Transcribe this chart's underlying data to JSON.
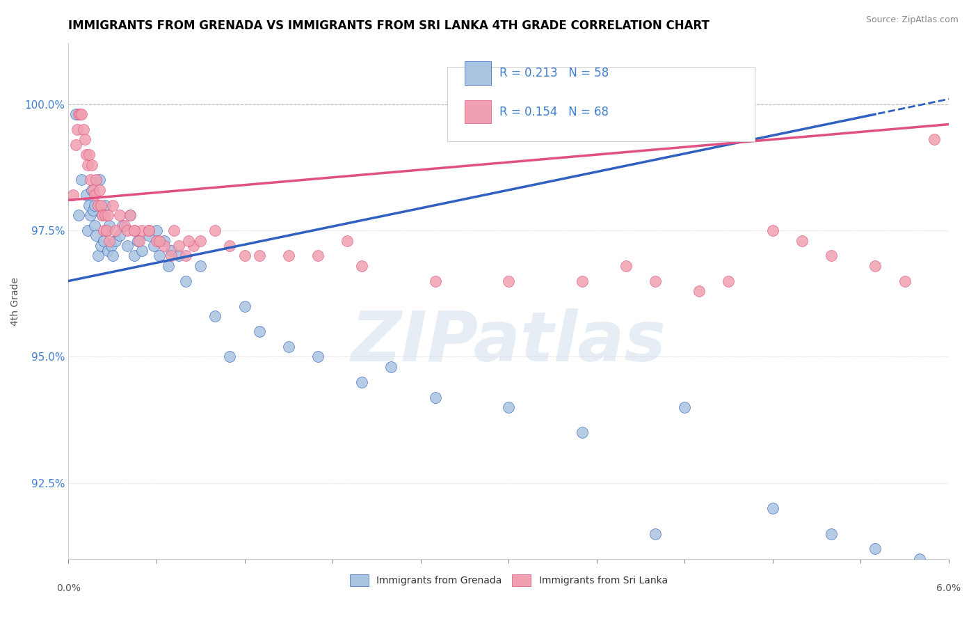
{
  "title": "IMMIGRANTS FROM GRENADA VS IMMIGRANTS FROM SRI LANKA 4TH GRADE CORRELATION CHART",
  "source_text": "Source: ZipAtlas.com",
  "ylabel": "4th Grade",
  "xmin": 0.0,
  "xmax": 6.0,
  "ymin": 91.0,
  "ymax": 101.2,
  "yticks": [
    92.5,
    95.0,
    97.5,
    100.0
  ],
  "ytick_labels": [
    "92.5%",
    "95.0%",
    "97.5%",
    "100.0%"
  ],
  "legend_blue_r": "R = 0.213",
  "legend_blue_n": "N = 58",
  "legend_pink_r": "R = 0.154",
  "legend_pink_n": "N = 68",
  "legend_label_blue": "Immigrants from Grenada",
  "legend_label_pink": "Immigrants from Sri Lanka",
  "watermark": "ZIPatlas",
  "blue_color": "#a8c4e0",
  "pink_color": "#f0a0b0",
  "blue_line_color": "#3060c0",
  "pink_line_color": "#e05080",
  "legend_text_color": "#4080d0",
  "blue_scatter_x": [
    0.05,
    0.07,
    0.09,
    0.12,
    0.13,
    0.14,
    0.15,
    0.16,
    0.17,
    0.18,
    0.18,
    0.19,
    0.2,
    0.21,
    0.22,
    0.23,
    0.24,
    0.25,
    0.26,
    0.27,
    0.28,
    0.29,
    0.3,
    0.32,
    0.35,
    0.37,
    0.4,
    0.42,
    0.45,
    0.47,
    0.5,
    0.55,
    0.58,
    0.6,
    0.62,
    0.65,
    0.68,
    0.7,
    0.75,
    0.8,
    0.9,
    1.0,
    1.1,
    1.2,
    1.3,
    1.5,
    1.7,
    2.0,
    2.2,
    2.5,
    3.0,
    3.5,
    4.0,
    4.2,
    4.8,
    5.2,
    5.5,
    5.8
  ],
  "blue_scatter_y": [
    99.8,
    97.8,
    98.5,
    98.2,
    97.5,
    98.0,
    97.8,
    98.3,
    97.9,
    97.6,
    98.0,
    97.4,
    97.0,
    98.5,
    97.2,
    97.8,
    97.3,
    98.0,
    97.5,
    97.1,
    97.6,
    97.2,
    97.0,
    97.3,
    97.4,
    97.6,
    97.2,
    97.8,
    97.0,
    97.3,
    97.1,
    97.4,
    97.2,
    97.5,
    97.0,
    97.3,
    96.8,
    97.1,
    97.0,
    96.5,
    96.8,
    95.8,
    95.0,
    96.0,
    95.5,
    95.2,
    95.0,
    94.5,
    94.8,
    94.2,
    94.0,
    93.5,
    91.5,
    94.0,
    92.0,
    91.5,
    91.2,
    91.0
  ],
  "pink_scatter_x": [
    0.03,
    0.05,
    0.06,
    0.07,
    0.08,
    0.09,
    0.1,
    0.11,
    0.12,
    0.13,
    0.14,
    0.15,
    0.16,
    0.17,
    0.18,
    0.19,
    0.2,
    0.21,
    0.22,
    0.23,
    0.24,
    0.25,
    0.26,
    0.27,
    0.28,
    0.3,
    0.32,
    0.35,
    0.38,
    0.4,
    0.42,
    0.45,
    0.48,
    0.5,
    0.55,
    0.6,
    0.65,
    0.7,
    0.75,
    0.8,
    0.85,
    0.9,
    1.0,
    1.1,
    1.2,
    1.3,
    1.5,
    1.7,
    2.0,
    2.5,
    3.0,
    3.5,
    4.0,
    4.5,
    4.8,
    5.0,
    5.2,
    5.5,
    5.7,
    5.9,
    4.3,
    3.8,
    1.9,
    0.45,
    0.55,
    0.62,
    0.72,
    0.82
  ],
  "pink_scatter_y": [
    98.2,
    99.2,
    99.5,
    99.8,
    99.8,
    99.8,
    99.5,
    99.3,
    99.0,
    98.8,
    99.0,
    98.5,
    98.8,
    98.3,
    98.2,
    98.5,
    98.0,
    98.3,
    98.0,
    97.8,
    97.5,
    97.8,
    97.5,
    97.8,
    97.3,
    98.0,
    97.5,
    97.8,
    97.6,
    97.5,
    97.8,
    97.5,
    97.3,
    97.5,
    97.5,
    97.3,
    97.2,
    97.0,
    97.2,
    97.0,
    97.2,
    97.3,
    97.5,
    97.2,
    97.0,
    97.0,
    97.0,
    97.0,
    96.8,
    96.5,
    96.5,
    96.5,
    96.5,
    96.5,
    97.5,
    97.3,
    97.0,
    96.8,
    96.5,
    99.3,
    96.3,
    96.8,
    97.3,
    97.5,
    97.5,
    97.3,
    97.5,
    97.3
  ],
  "blue_line_x0": 0.0,
  "blue_line_y0": 96.5,
  "blue_line_x1": 6.0,
  "blue_line_y1": 100.1,
  "pink_line_x0": 0.0,
  "pink_line_y0": 98.1,
  "pink_line_x1": 6.0,
  "pink_line_y1": 99.6,
  "dashed_line_y": 100.0,
  "xtick_positions": [
    0.0,
    0.6,
    1.2,
    1.8,
    2.4,
    3.0,
    3.6,
    4.2,
    4.8,
    5.4,
    6.0
  ]
}
